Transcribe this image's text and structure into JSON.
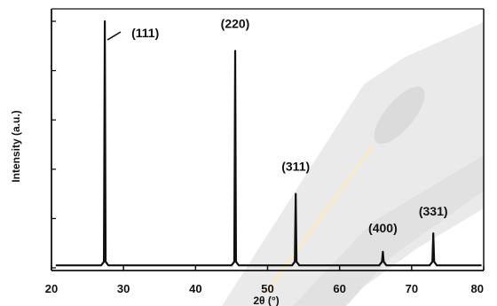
{
  "chart_data": {
    "type": "line",
    "title": "",
    "xlabel": "2θ (°)",
    "ylabel": "Intensity (a.u.)",
    "xlim": [
      20,
      80
    ],
    "ylim": [
      0,
      100
    ],
    "x_ticks": [
      20,
      30,
      40,
      50,
      60,
      70,
      80
    ],
    "grid": false,
    "peaks": [
      {
        "label": "(111)",
        "x": 27.4,
        "y": 100
      },
      {
        "label": "(220)",
        "x": 45.5,
        "y": 88
      },
      {
        "label": "(311)",
        "x": 53.9,
        "y": 30
      },
      {
        "label": "(400)",
        "x": 66.0,
        "y": 6.5
      },
      {
        "label": "(331)",
        "x": 73.0,
        "y": 14
      }
    ],
    "baseline": 1
  }
}
